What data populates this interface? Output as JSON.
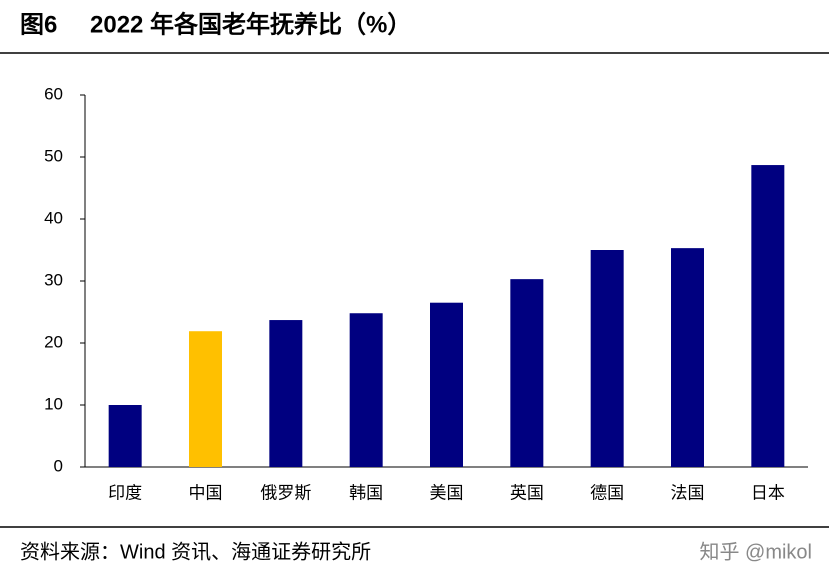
{
  "chart_data": {
    "type": "bar",
    "figure_label": "图6",
    "title": "2022 年各国老年抚养比（%）",
    "categories": [
      "印度",
      "中国",
      "俄罗斯",
      "韩国",
      "美国",
      "英国",
      "德国",
      "法国",
      "日本"
    ],
    "values": [
      10.0,
      21.9,
      23.7,
      24.8,
      26.5,
      30.3,
      35.0,
      35.3,
      48.7
    ],
    "colors": [
      "#000080",
      "#ffc000",
      "#000080",
      "#000080",
      "#000080",
      "#000080",
      "#000080",
      "#000080",
      "#000080"
    ],
    "ylim": [
      0,
      60
    ],
    "yticks": [
      0,
      10,
      20,
      30,
      40,
      50,
      60
    ],
    "grid": false,
    "source": "资料来源：Wind 资讯、海通证券研究所",
    "watermark": "知乎 @mikol"
  }
}
